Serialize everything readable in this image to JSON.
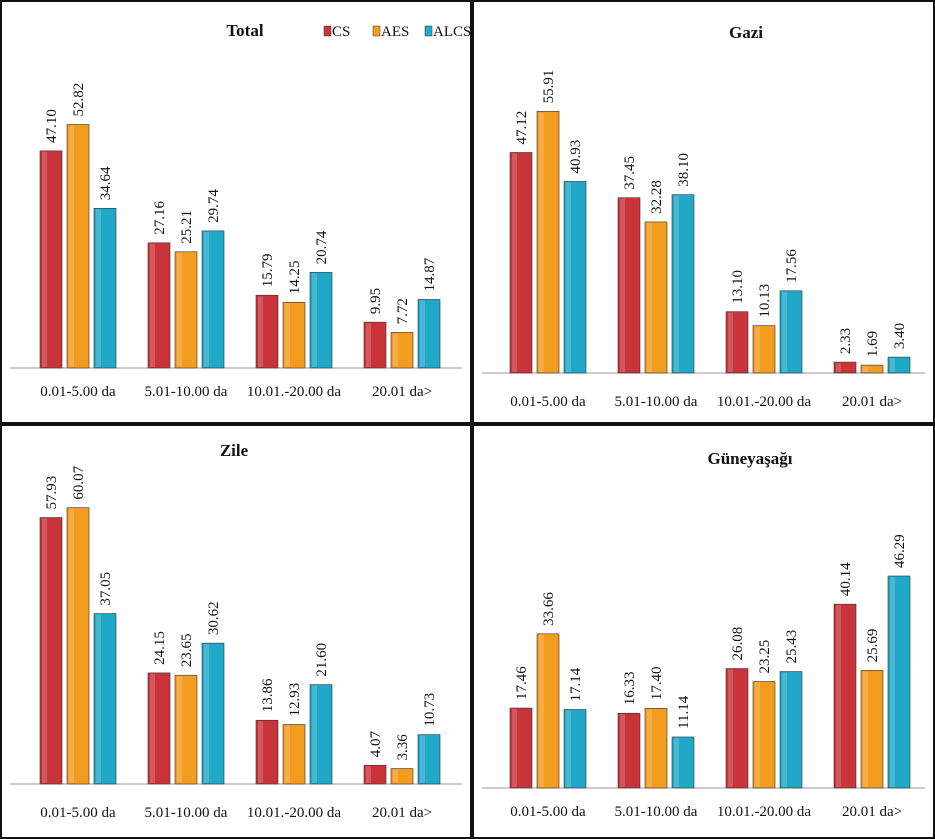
{
  "colors": {
    "CS": "#c9343a",
    "AES": "#f39c1f",
    "ALCS": "#1fa8c8"
  },
  "legend": [
    "CS",
    "AES",
    "ALCS"
  ],
  "chart_data": [
    {
      "type": "bar",
      "title": "Total",
      "categories": [
        "0.01-5.00 da",
        "5.01-10.00 da",
        "10.01.-20.00 da",
        "20.01 da>"
      ],
      "series": [
        {
          "name": "CS",
          "values": [
            47.1,
            27.16,
            15.79,
            9.95
          ],
          "labels": [
            "47.10",
            "27.16",
            "15.79",
            "9.95"
          ]
        },
        {
          "name": "AES",
          "values": [
            52.82,
            25.21,
            14.25,
            7.72
          ],
          "labels": [
            "52.82",
            "25.21",
            "14.25",
            "7.72"
          ]
        },
        {
          "name": "ALCS",
          "values": [
            34.64,
            29.74,
            20.74,
            14.87
          ],
          "labels": [
            "34.64",
            "29.74",
            "20.74",
            "14.87"
          ]
        }
      ],
      "ylim": [
        0,
        62
      ],
      "legend_position": "top-right"
    },
    {
      "type": "bar",
      "title": "Gazi",
      "categories": [
        "0.01-5.00 da",
        "5.01-10.00 da",
        "10.01.-20.00 da",
        "20.01 da>"
      ],
      "series": [
        {
          "name": "CS",
          "values": [
            47.12,
            37.45,
            13.1,
            2.33
          ],
          "labels": [
            "47.12",
            "37.45",
            "13.10",
            "2.33"
          ]
        },
        {
          "name": "AES",
          "values": [
            55.91,
            32.28,
            10.13,
            1.69
          ],
          "labels": [
            "55.91",
            "32.28",
            "10.13",
            "1.69"
          ]
        },
        {
          "name": "ALCS",
          "values": [
            40.93,
            38.1,
            17.56,
            3.4
          ],
          "labels": [
            "40.93",
            "38.10",
            "17.56",
            "3.40"
          ]
        }
      ],
      "ylim": [
        0,
        62
      ]
    },
    {
      "type": "bar",
      "title": "Zile",
      "categories": [
        "0.01-5.00 da",
        "5.01-10.00 da",
        "10.01.-20.00 da",
        "20.01 da>"
      ],
      "series": [
        {
          "name": "CS",
          "values": [
            57.93,
            24.15,
            13.86,
            4.07
          ],
          "labels": [
            "57.93",
            "24.15",
            "13.86",
            "4.07"
          ]
        },
        {
          "name": "AES",
          "values": [
            60.07,
            23.65,
            12.93,
            3.36
          ],
          "labels": [
            "60.07",
            "23.65",
            "12.93",
            "3.36"
          ]
        },
        {
          "name": "ALCS",
          "values": [
            37.05,
            30.62,
            21.6,
            10.73
          ],
          "labels": [
            "37.05",
            "30.62",
            "21.60",
            "10.73"
          ]
        }
      ],
      "ylim": [
        0,
        62
      ]
    },
    {
      "type": "bar",
      "title": "Güneyaşağı",
      "categories": [
        "0.01-5.00 da",
        "5.01-10.00 da",
        "10.01.-20.00 da",
        "20.01 da>"
      ],
      "series": [
        {
          "name": "CS",
          "values": [
            17.46,
            16.33,
            26.08,
            40.14
          ],
          "labels": [
            "17.46",
            "16.33",
            "26.08",
            "40.14"
          ]
        },
        {
          "name": "AES",
          "values": [
            33.66,
            17.4,
            23.25,
            25.69
          ],
          "labels": [
            "33.66",
            "17.40",
            "23.25",
            "25.69"
          ]
        },
        {
          "name": "ALCS",
          "values": [
            17.14,
            11.14,
            25.43,
            46.29
          ],
          "labels": [
            "17.14",
            "11.14",
            "25.43",
            "46.29"
          ]
        }
      ],
      "ylim": [
        0,
        62
      ]
    }
  ]
}
